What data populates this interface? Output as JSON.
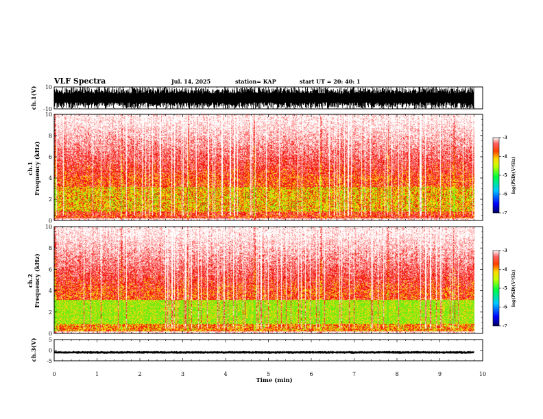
{
  "header": {
    "title": "VLF Spectra",
    "date": "Jul. 14, 2025",
    "station": "station= KAP",
    "start": "start UT =  20: 40: 1"
  },
  "chart_data": [
    {
      "type": "line",
      "name": "ch1-waveform",
      "ylabel": "ch.1(V)",
      "ylim": [
        -10,
        10
      ],
      "yticks": [
        "10",
        "-10"
      ],
      "xlim": [
        0,
        10
      ],
      "note": "waveform saturating near full scale over 0-9.8 min"
    },
    {
      "type": "heatmap",
      "name": "ch1-spectrogram",
      "ylabel": "ch.1\nFrequency (kHz)",
      "ylim": [
        0,
        10
      ],
      "yticks": [
        "0",
        "2",
        "4",
        "6",
        "8",
        "10"
      ],
      "xlim": [
        0,
        10
      ],
      "colorbar": {
        "label": "log(PSD)(V²/Hz)",
        "range": [
          -7,
          -3
        ],
        "ticks": [
          "-3",
          "-4",
          "-5",
          "-6",
          "-7"
        ]
      }
    },
    {
      "type": "heatmap",
      "name": "ch2-spectrogram",
      "ylabel": "ch.2\nFrequency (kHz)",
      "ylim": [
        0,
        10
      ],
      "yticks": [
        "0",
        "2",
        "4",
        "6",
        "8",
        "10"
      ],
      "xlim": [
        0,
        10
      ],
      "colorbar": {
        "label": "log(PSD)(V²/Hz)",
        "range": [
          -7,
          -3
        ],
        "ticks": [
          "-3",
          "-4",
          "-5",
          "-6",
          "-7"
        ]
      }
    },
    {
      "type": "line",
      "name": "ch3-waveform",
      "ylabel": "ch.3(V)",
      "ylim": [
        -5,
        5
      ],
      "yticks": [
        "5",
        "0",
        "-5"
      ],
      "xlim": [
        0,
        10
      ],
      "note": "narrow band near -1 V over 0-9.8 min"
    }
  ],
  "xaxis": {
    "label": "Time (min)",
    "ticks": [
      "0",
      "1",
      "2",
      "3",
      "4",
      "5",
      "6",
      "7",
      "8",
      "9",
      "10"
    ]
  },
  "colors": {
    "ink": "#000000",
    "background": "#ffffff",
    "red": "#ff0000",
    "yellow": "#ffd700",
    "green": "#5fe600"
  }
}
